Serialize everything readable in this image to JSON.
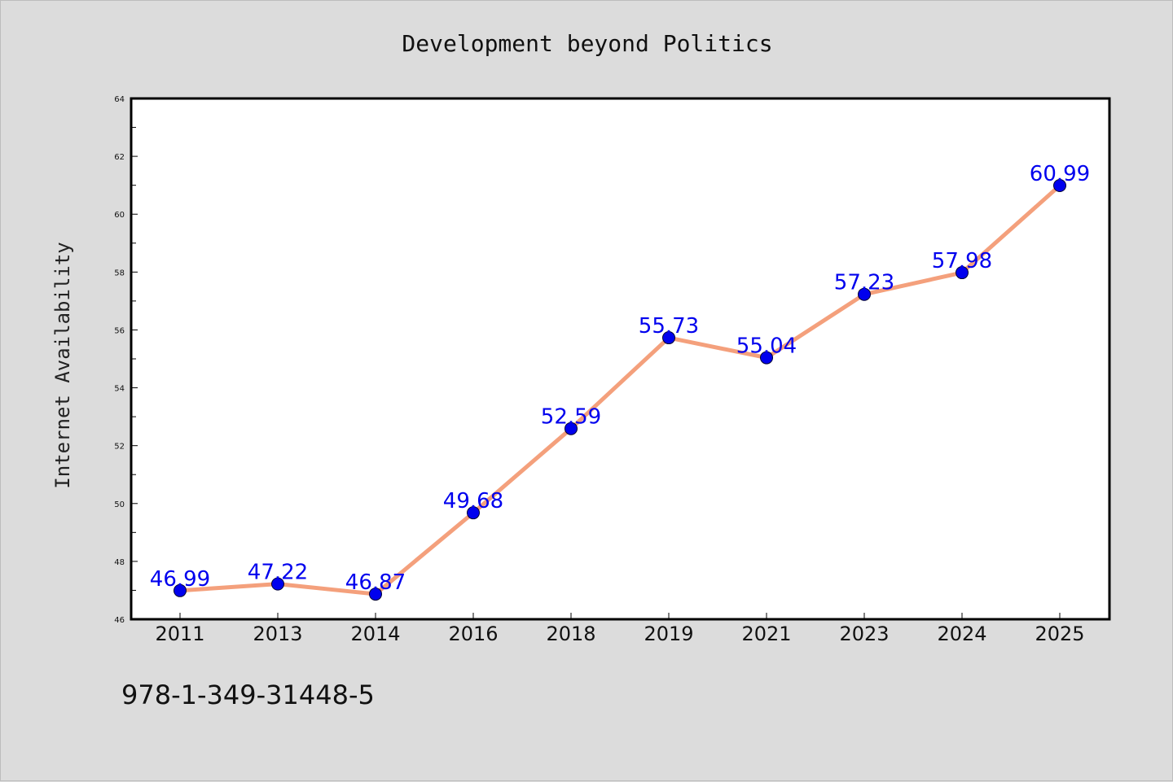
{
  "chart_data": {
    "type": "line",
    "title": "Development beyond Politics",
    "xlabel": "",
    "ylabel": "Internet Availability",
    "categories": [
      "2011",
      "2013",
      "2014",
      "2016",
      "2018",
      "2019",
      "2021",
      "2023",
      "2024",
      "2025"
    ],
    "series": [
      {
        "values": [
          46.99,
          47.22,
          46.87,
          49.68,
          52.59,
          55.73,
          55.04,
          57.23,
          57.98,
          60.99
        ],
        "labels": [
          "46.99",
          "47.22",
          "46.87",
          "49.68",
          "52.59",
          "55.73",
          "55.04",
          "57.23",
          "57.98",
          "60.99"
        ],
        "line_color": "#f4a07c",
        "marker_color": "#0000ee",
        "label_color": "#0000ee"
      }
    ],
    "ylim": [
      46,
      64
    ],
    "yticks": [
      "46",
      "48",
      "50",
      "52",
      "54",
      "56",
      "58",
      "60",
      "62",
      "64"
    ],
    "grid": false,
    "legend": "none"
  },
  "footnote": "978-1-349-31448-5",
  "colors": {
    "background": "#dcdcdc",
    "plot_background": "#ffffff"
  }
}
